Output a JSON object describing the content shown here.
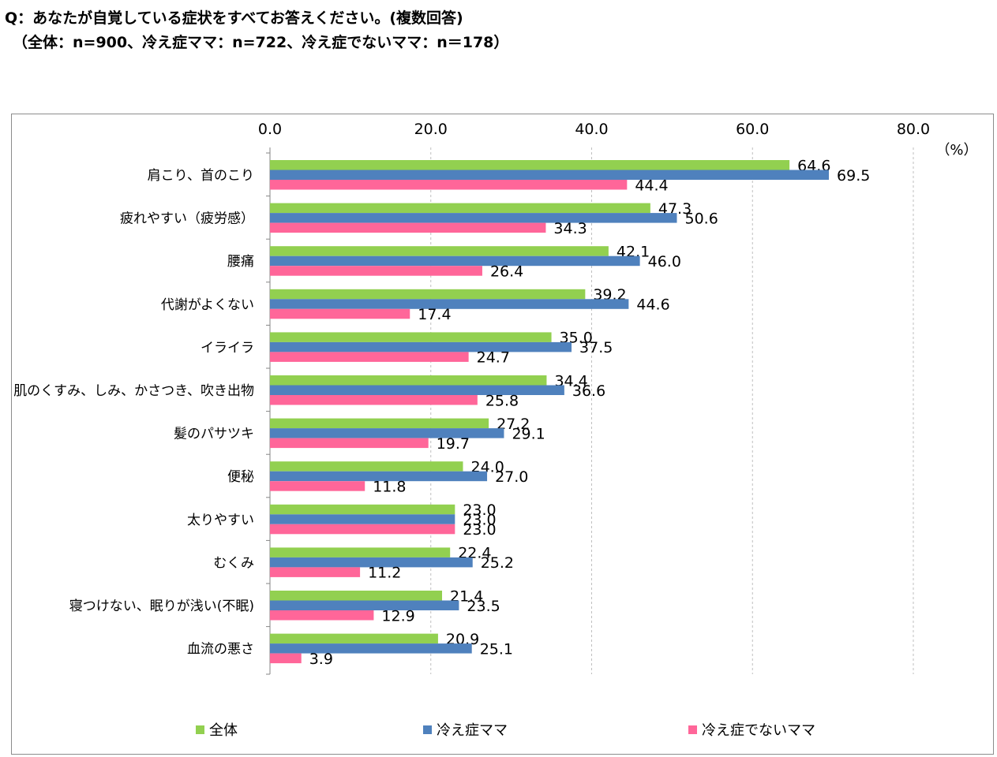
{
  "title": {
    "line1": "Q：あなたが自覚している症状をすべてお答えください。(複数回答)",
    "line2": "（全体：n=900、冷え症ママ：n=722、冷え症でないママ：n＝178）"
  },
  "colors": {
    "all": "#92D050",
    "cold": "#4F81BD",
    "notcold": "#FF6699",
    "grid": "#bfbfbf",
    "axis": "#868686"
  },
  "chart_data": {
    "type": "bar",
    "orientation": "horizontal",
    "unit_label": "（%）",
    "xlim": [
      0,
      80
    ],
    "ticks": [
      "0.0",
      "20.0",
      "40.0",
      "60.0",
      "80.0"
    ],
    "tick_values": [
      0,
      20,
      40,
      60,
      80
    ],
    "categories": [
      "肩こり、首のこり",
      "疲れやすい（疲労感）",
      "腰痛",
      "代謝がよくない",
      "イライラ",
      "肌のくすみ、しみ、かさつき、吹き出物",
      "髪のパサツキ",
      "便秘",
      "太りやすい",
      "むくみ",
      "寝つけない、眠りが浅い(不眠)",
      "血流の悪さ"
    ],
    "series": [
      {
        "name": "全体",
        "values": [
          64.6,
          47.3,
          42.1,
          39.2,
          35.0,
          34.4,
          27.2,
          24.0,
          23.0,
          22.4,
          21.4,
          20.9
        ]
      },
      {
        "name": "冷え症ママ",
        "values": [
          69.5,
          50.6,
          46.0,
          44.6,
          37.5,
          36.6,
          29.1,
          27.0,
          23.0,
          25.2,
          23.5,
          25.1
        ]
      },
      {
        "name": "冷え症でないママ",
        "values": [
          44.4,
          34.3,
          26.4,
          17.4,
          24.7,
          25.8,
          19.7,
          11.8,
          23.0,
          11.2,
          12.9,
          3.9
        ]
      }
    ],
    "grid": true,
    "legend_position": "bottom"
  }
}
